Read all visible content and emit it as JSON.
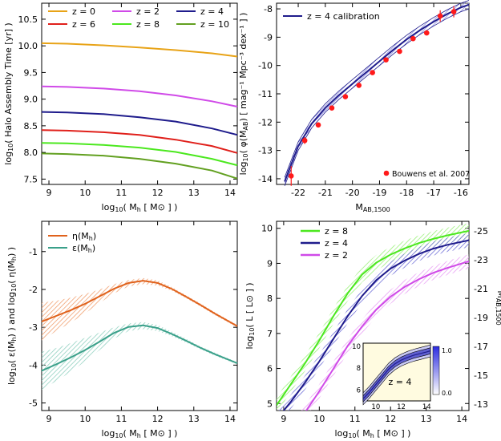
{
  "chart_data": [
    {
      "id": "a",
      "type": "line",
      "xlabel": "log10( Mh [ M⊙ ] )",
      "ylabel": "log10( Halo Assembly Time [yr] )",
      "xlim": [
        8.8,
        14.2
      ],
      "ylim": [
        7.4,
        10.8
      ],
      "xticks": [
        9,
        10,
        11,
        12,
        13,
        14
      ],
      "yticks": [
        7.5,
        8.0,
        8.5,
        9.0,
        9.5,
        10.0,
        10.5
      ],
      "yticklabels": [
        "7.5",
        "8.0",
        "8.5",
        "9.0",
        "9.5",
        "10.0",
        "10.5"
      ],
      "legend_position": "top",
      "series": [
        {
          "name": "z = 0",
          "color": "#e8a317",
          "x": [
            8.8,
            9.5,
            10.5,
            11.5,
            12.5,
            13.5,
            14.2
          ],
          "y": [
            10.05,
            10.04,
            10.01,
            9.97,
            9.92,
            9.86,
            9.8
          ]
        },
        {
          "name": "z = 2",
          "color": "#d04ae8",
          "x": [
            8.8,
            9.5,
            10.5,
            11.5,
            12.5,
            13.5,
            14.2
          ],
          "y": [
            9.24,
            9.23,
            9.2,
            9.15,
            9.07,
            8.96,
            8.86
          ]
        },
        {
          "name": "z = 4",
          "color": "#1f1c8c",
          "x": [
            8.8,
            9.5,
            10.5,
            11.5,
            12.5,
            13.5,
            14.2
          ],
          "y": [
            8.76,
            8.75,
            8.72,
            8.66,
            8.58,
            8.45,
            8.33
          ]
        },
        {
          "name": "z = 6",
          "color": "#e0201b",
          "x": [
            8.8,
            9.5,
            10.5,
            11.5,
            12.5,
            13.5,
            14.2
          ],
          "y": [
            8.42,
            8.41,
            8.38,
            8.33,
            8.24,
            8.12,
            7.99
          ]
        },
        {
          "name": "z = 8",
          "color": "#4be81e",
          "x": [
            8.8,
            9.5,
            10.5,
            11.5,
            12.5,
            13.5,
            14.2
          ],
          "y": [
            8.18,
            8.17,
            8.14,
            8.09,
            8.01,
            7.88,
            7.76
          ]
        },
        {
          "name": "z = 10",
          "color": "#62a020",
          "x": [
            8.8,
            9.5,
            10.5,
            11.5,
            12.5,
            13.5,
            14.2
          ],
          "y": [
            7.98,
            7.97,
            7.94,
            7.88,
            7.79,
            7.66,
            7.51
          ]
        }
      ]
    },
    {
      "id": "b",
      "type": "line",
      "xlabel": "MAB,1500",
      "ylabel": "log10( φ(MAB) [ mag⁻¹ Mpc⁻³ dex⁻¹ ] )",
      "xlim": [
        -22.8,
        -15.7
      ],
      "ylim": [
        -14.2,
        -7.8
      ],
      "xticks": [
        -22,
        -21,
        -20,
        -19,
        -18,
        -17,
        -16
      ],
      "yticks": [
        -14,
        -13,
        -12,
        -11,
        -10,
        -9,
        -8
      ],
      "series": [
        {
          "name": "z = 4 calibration",
          "color": "#1f1c8c",
          "band_color": "#8a8ae0",
          "x": [
            -22.5,
            -22.0,
            -21.5,
            -21.0,
            -20.5,
            -20.0,
            -19.5,
            -19.0,
            -18.5,
            -18.0,
            -17.5,
            -17.0,
            -16.5,
            -16.0,
            -15.7
          ],
          "y": [
            -14.1,
            -12.85,
            -12.05,
            -11.5,
            -11.05,
            -10.65,
            -10.25,
            -9.85,
            -9.45,
            -9.08,
            -8.75,
            -8.45,
            -8.18,
            -7.95,
            -7.85
          ],
          "band_width": 0.15
        }
      ],
      "points": {
        "name": "Bouwens et al. 2007",
        "color": "#ff1a1a",
        "x": [
          -22.26,
          -21.76,
          -21.26,
          -20.76,
          -20.26,
          -19.76,
          -19.26,
          -18.76,
          -18.26,
          -17.76,
          -17.26,
          -16.76,
          -16.26
        ],
        "y": [
          -13.9,
          -12.65,
          -12.1,
          -11.5,
          -11.1,
          -10.7,
          -10.25,
          -9.8,
          -9.5,
          -9.05,
          -8.85,
          -8.25,
          -8.1
        ],
        "err": [
          0.35,
          0.12,
          0.08,
          0.06,
          0.05,
          0.05,
          0.05,
          0.06,
          0.06,
          0.06,
          0.07,
          0.2,
          0.2
        ]
      }
    },
    {
      "id": "c",
      "type": "line",
      "xlabel": "log10( Mh [ M⊙ ] )",
      "ylabel": "log10( ε(Mh) )  and  log10( η(Mh) )",
      "xlim": [
        8.8,
        14.2
      ],
      "ylim": [
        -5.2,
        -0.2
      ],
      "xticks": [
        9,
        10,
        11,
        12,
        13,
        14
      ],
      "yticks": [
        -5,
        -4,
        -3,
        -2,
        -1
      ],
      "legend_position": "top-left",
      "series": [
        {
          "name": "η(Mh)",
          "color": "#e0621c",
          "band_color": "#f0a070",
          "x": [
            8.8,
            9.2,
            9.6,
            10.0,
            10.4,
            10.8,
            11.2,
            11.6,
            12.0,
            12.4,
            12.8,
            13.2,
            13.6,
            14.2
          ],
          "y": [
            -2.85,
            -2.7,
            -2.55,
            -2.38,
            -2.18,
            -1.98,
            -1.83,
            -1.77,
            -1.83,
            -1.99,
            -2.2,
            -2.42,
            -2.65,
            -2.97
          ],
          "band_low": [
            -3.35,
            -3.1,
            -2.88,
            -2.63,
            -2.36,
            -2.1,
            -1.92,
            -1.86,
            -1.9,
            -2.04,
            -2.24,
            -2.46,
            -2.69,
            -3.0
          ],
          "band_high": [
            -2.35,
            -2.3,
            -2.22,
            -2.12,
            -2.0,
            -1.86,
            -1.75,
            -1.7,
            -1.76,
            -1.94,
            -2.16,
            -2.38,
            -2.61,
            -2.94
          ]
        },
        {
          "name": "ε(Mh)",
          "color": "#3aa08a",
          "band_color": "#90d0c0",
          "x": [
            8.8,
            9.2,
            9.6,
            10.0,
            10.4,
            10.8,
            11.2,
            11.6,
            12.0,
            12.4,
            12.8,
            13.2,
            13.6,
            14.2
          ],
          "y": [
            -4.15,
            -3.98,
            -3.8,
            -3.6,
            -3.38,
            -3.15,
            -2.99,
            -2.95,
            -3.02,
            -3.18,
            -3.36,
            -3.55,
            -3.72,
            -3.95
          ],
          "band_low": [
            -4.65,
            -4.42,
            -4.18,
            -3.9,
            -3.6,
            -3.3,
            -3.1,
            -3.05,
            -3.1,
            -3.24,
            -3.41,
            -3.59,
            -3.76,
            -3.98
          ],
          "band_high": [
            -3.65,
            -3.55,
            -3.42,
            -3.28,
            -3.14,
            -3.0,
            -2.9,
            -2.86,
            -2.94,
            -3.12,
            -3.31,
            -3.51,
            -3.68,
            -3.92
          ]
        }
      ]
    },
    {
      "id": "d",
      "type": "line",
      "xlabel": "log10( Mh [ M⊙ ] )",
      "ylabel": "log10( L [ L⊙ ] )",
      "ylabel_right": "MAB,1500",
      "xlim": [
        8.8,
        14.2
      ],
      "ylim": [
        4.8,
        10.2
      ],
      "xticks": [
        9,
        10,
        11,
        12,
        13,
        14
      ],
      "yticks": [
        5,
        6,
        7,
        8,
        9,
        10
      ],
      "yticks_right": [
        -25,
        -23,
        -21,
        -19,
        -17,
        -15,
        -13
      ],
      "legend_position": "top-left",
      "series": [
        {
          "name": "z = 8",
          "color": "#4be81e",
          "band_color": "#9af07a",
          "x": [
            8.8,
            9.2,
            9.6,
            10.0,
            10.4,
            10.8,
            11.2,
            11.6,
            12.0,
            12.4,
            12.8,
            13.2,
            13.6,
            14.2
          ],
          "y": [
            4.95,
            5.55,
            6.15,
            6.8,
            7.5,
            8.15,
            8.68,
            9.02,
            9.25,
            9.43,
            9.58,
            9.7,
            9.8,
            9.93
          ],
          "band_width": 0.22
        },
        {
          "name": "z = 4",
          "color": "#1f1c8c",
          "band_color": "#7070d8",
          "x": [
            8.8,
            9.2,
            9.6,
            10.0,
            10.4,
            10.8,
            11.2,
            11.6,
            12.0,
            12.4,
            12.8,
            13.2,
            13.6,
            14.2
          ],
          "y": [
            4.55,
            5.05,
            5.6,
            6.2,
            6.85,
            7.5,
            8.07,
            8.52,
            8.85,
            9.08,
            9.27,
            9.42,
            9.53,
            9.66
          ],
          "band_width": 0.2
        },
        {
          "name": "z = 2",
          "color": "#d04ae8",
          "band_color": "#e8a0f4",
          "x": [
            8.8,
            9.2,
            9.6,
            10.0,
            10.4,
            10.8,
            11.2,
            11.6,
            12.0,
            12.4,
            12.8,
            13.2,
            13.6,
            14.2
          ],
          "y": [
            3.7,
            4.2,
            4.75,
            5.35,
            6.0,
            6.65,
            7.2,
            7.68,
            8.05,
            8.33,
            8.55,
            8.73,
            8.87,
            9.06
          ],
          "band_width": 0.2
        }
      ],
      "inset": {
        "label": "z = 4",
        "xticks": [
          10,
          12,
          14
        ],
        "yticks": [
          6,
          8,
          10
        ],
        "xlim": [
          9,
          14.3
        ],
        "ylim": [
          5,
          10.3
        ],
        "colorbar_ticks": [
          "1.0",
          "0.0"
        ],
        "background": "#fffbe0",
        "curve_x": [
          9.0,
          9.5,
          10.0,
          10.5,
          11.0,
          11.5,
          12.0,
          12.5,
          13.0,
          13.5,
          14.0,
          14.3
        ],
        "curve_y": [
          5.2,
          5.8,
          6.5,
          7.2,
          7.9,
          8.4,
          8.75,
          9.0,
          9.2,
          9.35,
          9.5,
          9.6
        ]
      }
    }
  ]
}
